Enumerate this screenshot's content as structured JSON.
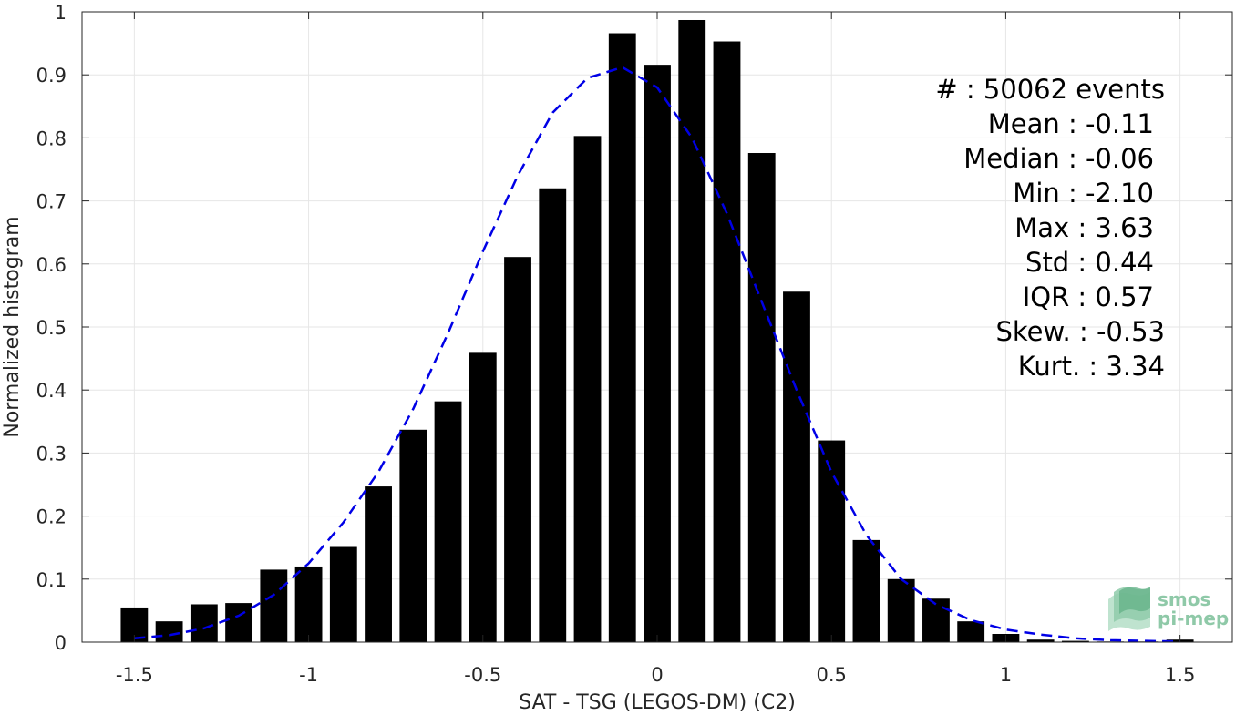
{
  "chart_data": {
    "type": "bar",
    "xlabel": "SAT - TSG (LEGOS-DM) (C2)",
    "ylabel": "Normalized histogram",
    "xlim": [
      -1.65,
      1.65
    ],
    "ylim": [
      0,
      1
    ],
    "xticks": [
      -1.5,
      -1,
      -0.5,
      0,
      0.5,
      1,
      1.5
    ],
    "xtick_labels": [
      "-1.5",
      "-1",
      "-0.5",
      "0",
      "0.5",
      "1",
      "1.5"
    ],
    "yticks": [
      0,
      0.1,
      0.2,
      0.3,
      0.4,
      0.5,
      0.6,
      0.7,
      0.8,
      0.9,
      1
    ],
    "ytick_labels": [
      "0",
      "0.1",
      "0.2",
      "0.3",
      "0.4",
      "0.5",
      "0.6",
      "0.7",
      "0.8",
      "0.9",
      "1"
    ],
    "grid": true,
    "bar_color": "#000000",
    "bars": {
      "x": [
        -1.5,
        -1.4,
        -1.3,
        -1.2,
        -1.1,
        -1.0,
        -0.9,
        -0.8,
        -0.7,
        -0.6,
        -0.5,
        -0.4,
        -0.3,
        -0.2,
        -0.1,
        0.0,
        0.1,
        0.2,
        0.3,
        0.4,
        0.5,
        0.6,
        0.7,
        0.8,
        0.9,
        1.0,
        1.1,
        1.2,
        1.3,
        1.4,
        1.5
      ],
      "values": [
        0.055,
        0.033,
        0.06,
        0.062,
        0.115,
        0.12,
        0.151,
        0.247,
        0.337,
        0.382,
        0.459,
        0.611,
        0.72,
        0.803,
        0.966,
        0.916,
        0.987,
        0.953,
        0.776,
        0.556,
        0.32,
        0.162,
        0.1,
        0.069,
        0.033,
        0.013,
        0.004,
        0.002,
        0.001,
        0.001,
        0.004
      ]
    },
    "fit_curve": {
      "style": "dashed",
      "color": "#0000e6",
      "x": [
        -1.5,
        -1.4,
        -1.3,
        -1.2,
        -1.1,
        -1.0,
        -0.9,
        -0.8,
        -0.7,
        -0.6,
        -0.5,
        -0.4,
        -0.3,
        -0.2,
        -0.1,
        0.0,
        0.1,
        0.2,
        0.3,
        0.4,
        0.5,
        0.6,
        0.7,
        0.8,
        0.9,
        1.0,
        1.1,
        1.2,
        1.3,
        1.4,
        1.5
      ],
      "values": [
        0.006,
        0.011,
        0.022,
        0.042,
        0.075,
        0.125,
        0.19,
        0.27,
        0.37,
        0.49,
        0.62,
        0.74,
        0.84,
        0.895,
        0.912,
        0.88,
        0.8,
        0.68,
        0.54,
        0.4,
        0.27,
        0.17,
        0.1,
        0.06,
        0.035,
        0.02,
        0.012,
        0.006,
        0.003,
        0.002,
        0.001
      ]
    },
    "stats_lines": [
      "#  : 50062 events",
      "Mean : -0.11",
      "Median : -0.06",
      "Min : -2.10",
      "Max : 3.63",
      "Std : 0.44",
      "IQR : 0.57",
      "Skew. : -0.53",
      "Kurt. : 3.34"
    ],
    "logo_text": [
      "smos",
      "pi-mep"
    ]
  }
}
